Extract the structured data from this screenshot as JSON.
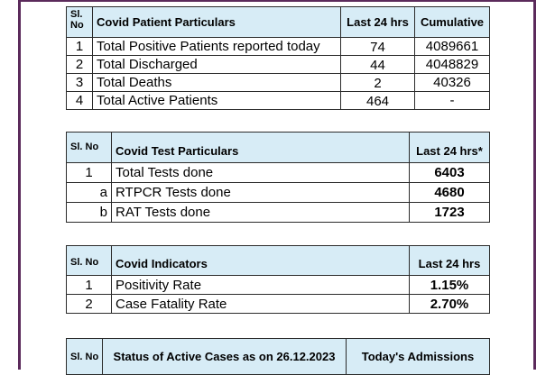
{
  "patients": {
    "headers": {
      "sl": "Sl. No",
      "particulars": "Covid Patient Particulars",
      "last24": "Last 24 hrs",
      "cumulative": "Cumulative"
    },
    "rows": [
      {
        "sl": "1",
        "label": "Total Positive Patients reported today",
        "last24": "74",
        "cumulative": "4089661"
      },
      {
        "sl": "2",
        "label": "Total Discharged",
        "last24": "44",
        "cumulative": "4048829"
      },
      {
        "sl": "3",
        "label": "Total Deaths",
        "last24": "2",
        "cumulative": "40326"
      },
      {
        "sl": "4",
        "label": "Total Active Patients",
        "last24": "464",
        "cumulative": "-"
      }
    ]
  },
  "tests": {
    "headers": {
      "sl": "Sl. No",
      "particulars": "Covid Test Particulars",
      "last24": "Last 24 hrs*"
    },
    "rows": [
      {
        "sl": "1",
        "label": "Total Tests done",
        "value": "6403"
      },
      {
        "sl": "a",
        "label": "RTPCR Tests done",
        "value": "4680"
      },
      {
        "sl": "b",
        "label": "RAT Tests done",
        "value": "1723"
      }
    ]
  },
  "indicators": {
    "headers": {
      "sl": "Sl. No",
      "particulars": "Covid Indicators",
      "last24": "Last 24 hrs"
    },
    "rows": [
      {
        "sl": "1",
        "label": "Positivity Rate",
        "value": "1.15%"
      },
      {
        "sl": "2",
        "label": "Case Fatality Rate",
        "value": "2.70%"
      }
    ]
  },
  "active_cases": {
    "headers": {
      "sl": "Sl. No",
      "status": "Status of Active Cases as on 26.12.2023",
      "admissions": "Today's Admissions"
    }
  },
  "colors": {
    "header_bg": "#d7ecf6",
    "frame": "#5b2a5b"
  }
}
